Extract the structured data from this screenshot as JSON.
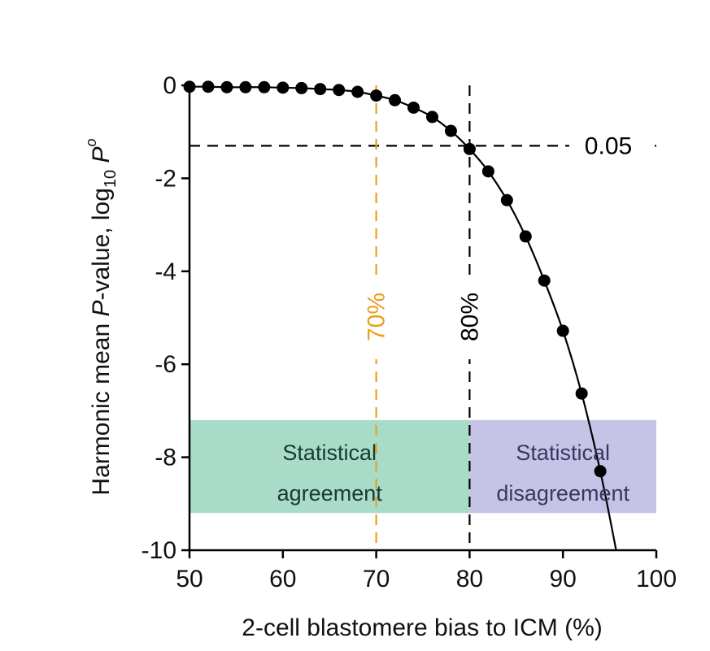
{
  "chart_data": {
    "type": "line",
    "xlabel": "2-cell blastomere bias to ICM (%)",
    "ylabel": {
      "prefix": "Harmonic mean ",
      "italic": "P",
      "middle": "-value, log",
      "subscript": "10",
      "tail_italic": "P",
      "tail_super": "o"
    },
    "xlim": [
      50,
      100
    ],
    "ylim": [
      -10,
      0
    ],
    "xticks": [
      50,
      60,
      70,
      80,
      90,
      100
    ],
    "yticks": [
      0,
      -2,
      -4,
      -6,
      -8,
      -10
    ],
    "xtick_labels": [
      "50",
      "60",
      "70",
      "80",
      "90",
      "100"
    ],
    "ytick_labels": [
      "0",
      "-2",
      "-4",
      "-6",
      "-8",
      "-10"
    ],
    "grid": false,
    "series": [
      {
        "points": [
          [
            50,
            -0.03
          ],
          [
            52,
            -0.03
          ],
          [
            54,
            -0.04
          ],
          [
            56,
            -0.04
          ],
          [
            58,
            -0.04
          ],
          [
            60,
            -0.05
          ],
          [
            62,
            -0.06
          ],
          [
            64,
            -0.08
          ],
          [
            66,
            -0.1
          ],
          [
            68,
            -0.14
          ],
          [
            70,
            -0.22
          ],
          [
            72,
            -0.32
          ],
          [
            74,
            -0.48
          ],
          [
            76,
            -0.68
          ],
          [
            78,
            -0.98
          ],
          [
            80,
            -1.37
          ],
          [
            82,
            -1.85
          ],
          [
            84,
            -2.47
          ],
          [
            86,
            -3.25
          ],
          [
            88,
            -4.2
          ],
          [
            90,
            -5.28
          ],
          [
            92,
            -6.63
          ],
          [
            94,
            -8.3
          ]
        ],
        "curve_end": [
          95.7,
          -10
        ],
        "color": "#000000"
      }
    ],
    "reference_lines": [
      {
        "orientation": "horizontal",
        "value": -1.3,
        "label": "0.05",
        "color": "#000000"
      },
      {
        "orientation": "vertical",
        "value": 80,
        "label": "80%",
        "color": "#000000"
      },
      {
        "orientation": "vertical",
        "value": 70,
        "label": "70%",
        "color": "#e8a020"
      }
    ],
    "regions": [
      {
        "x": [
          50,
          80
        ],
        "y": [
          -9.2,
          -7.2
        ],
        "color": "#a8dcc8",
        "lines": [
          "Statistical",
          "agreement"
        ],
        "text_color": "#1a3a30"
      },
      {
        "x": [
          80,
          100
        ],
        "y": [
          -9.2,
          -7.2
        ],
        "color": "#c6c4e6",
        "lines": [
          "Statistical",
          "disagreement"
        ],
        "text_color": "#3a3660"
      }
    ]
  }
}
